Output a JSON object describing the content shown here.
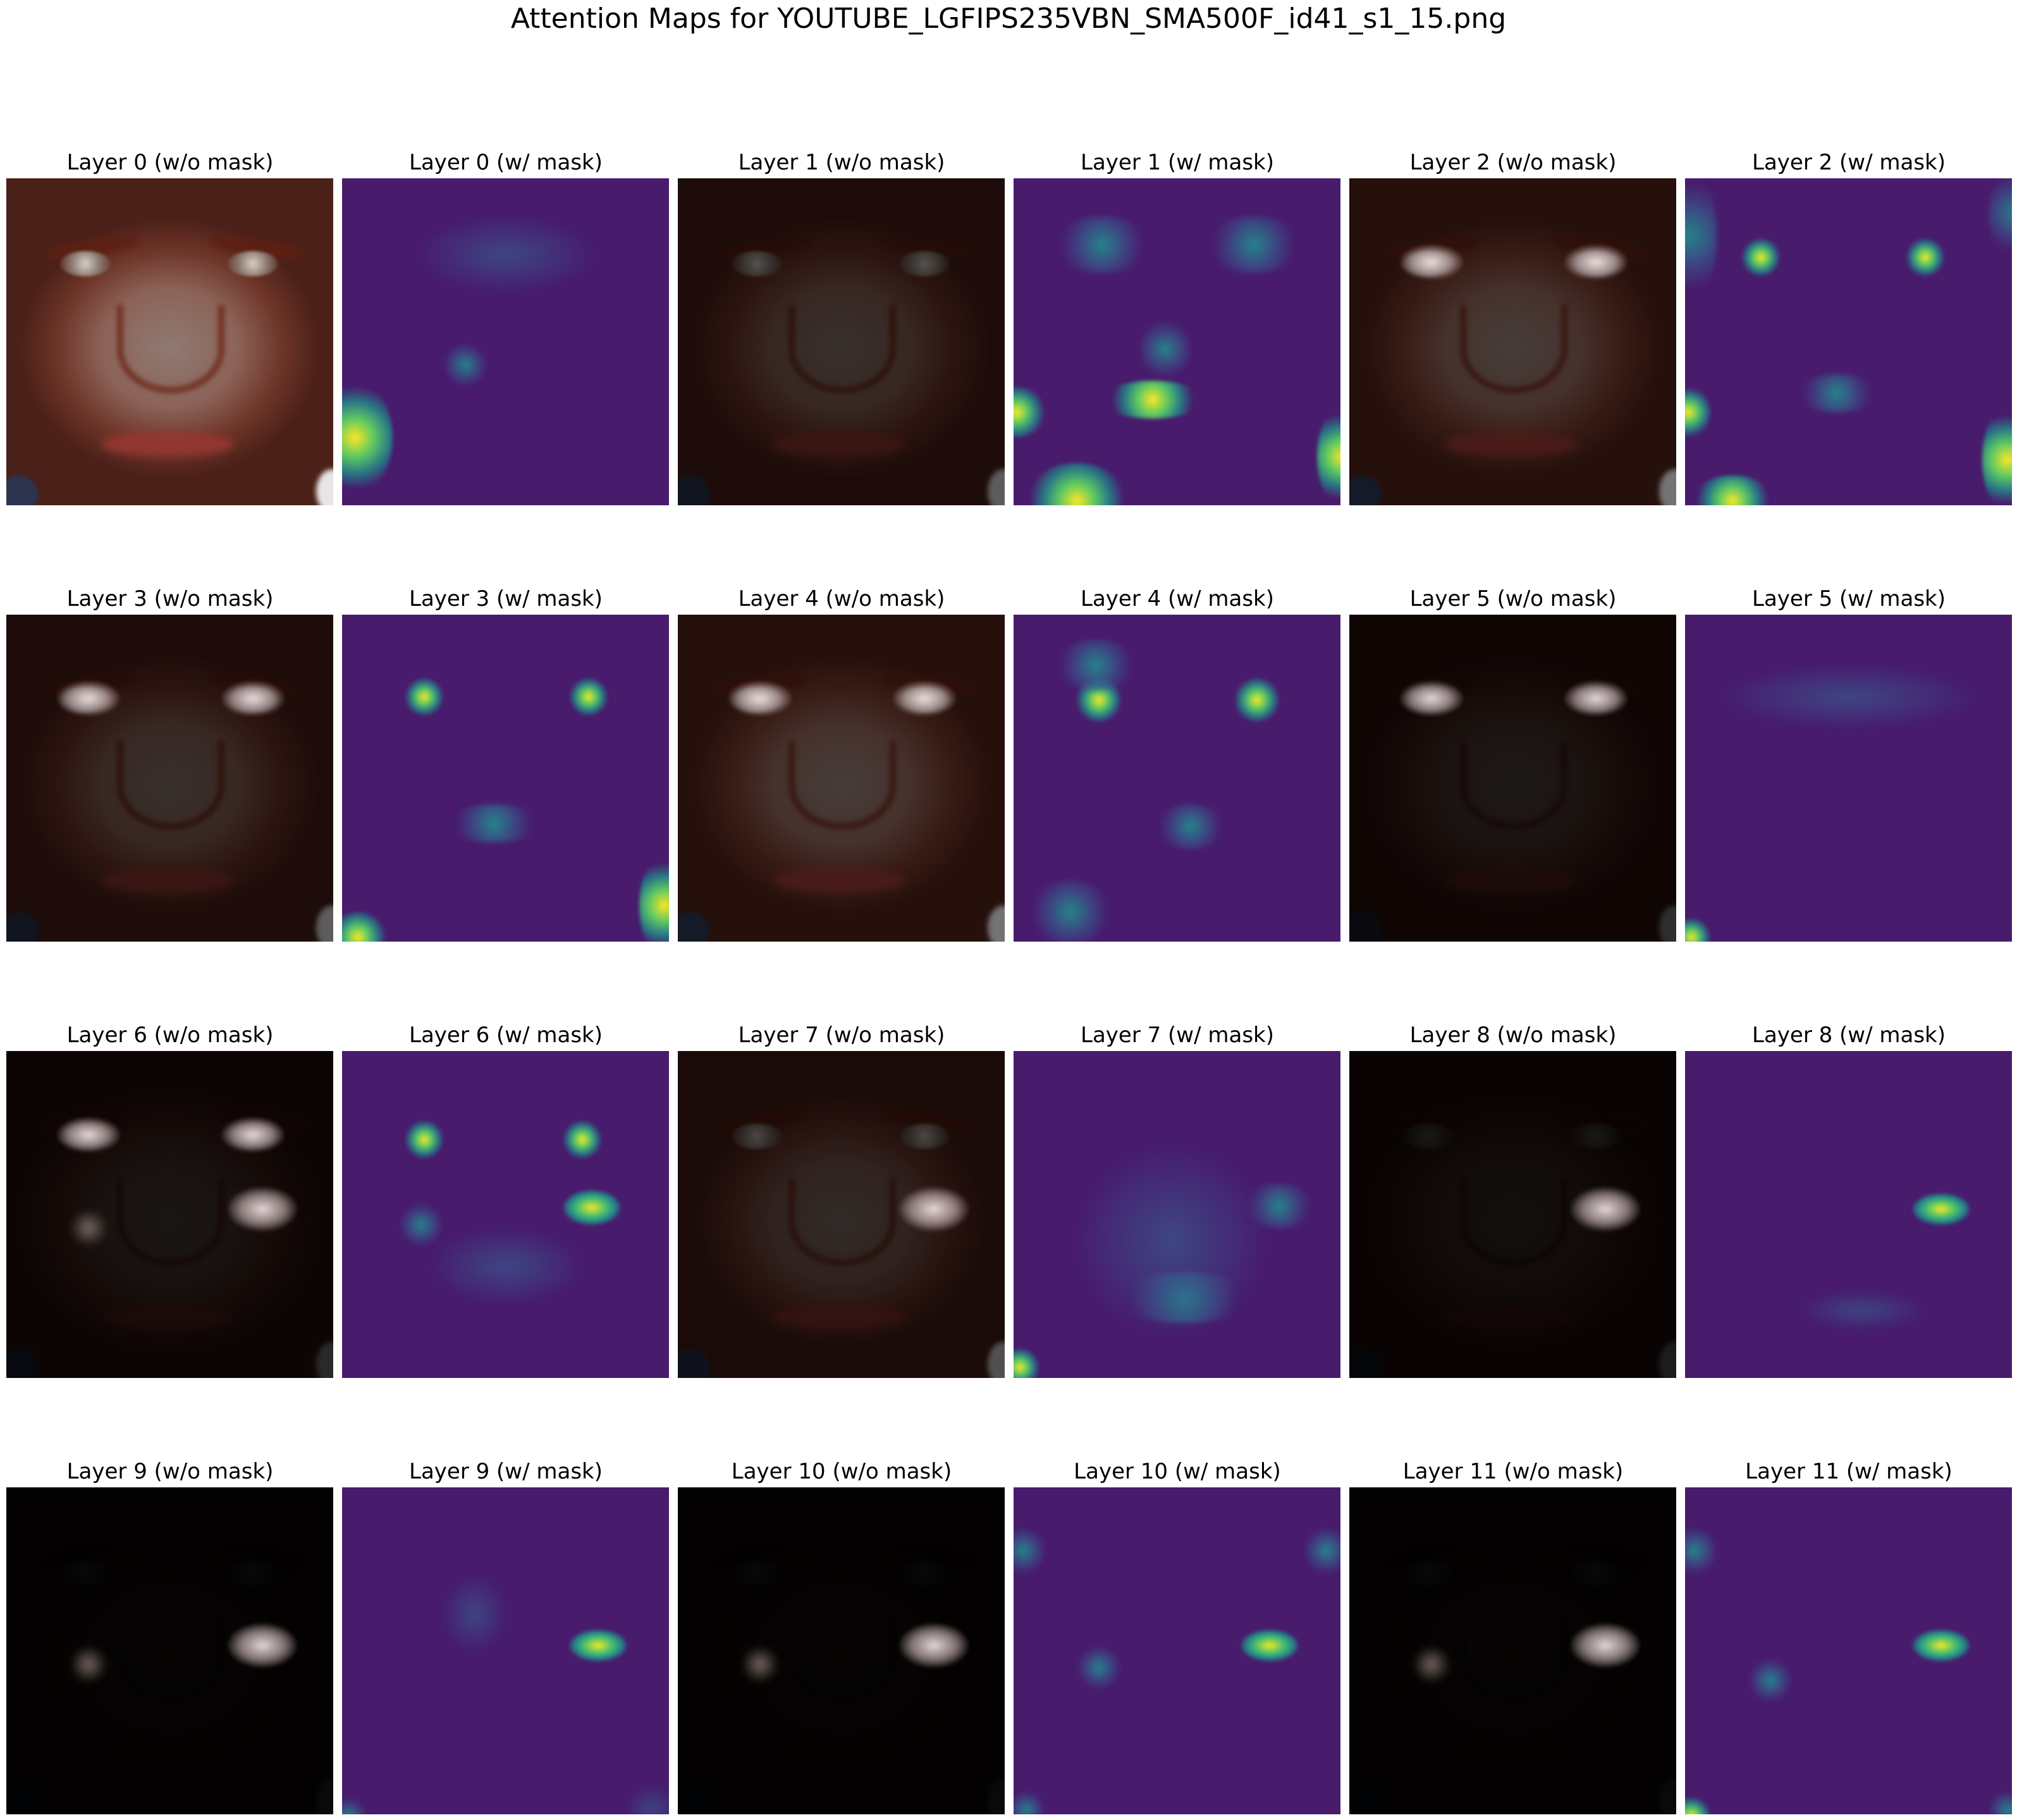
{
  "figure": {
    "title": "Attention Maps for YOUTUBE_LGFIPS235VBN_SMA500F_id41_s1_15.png"
  },
  "colors": {
    "viridis_low": "#481b6d",
    "viridis_mid": "#21918c",
    "viridis_high": "#fde725",
    "skin": "#8c6358"
  },
  "panels": [
    {
      "title": "Layer 0 (w/o mask)",
      "kind": "face",
      "darkness": 0.0
    },
    {
      "title": "Layer 0 (w/ mask)",
      "kind": "attention"
    },
    {
      "title": "Layer 1 (w/o mask)",
      "kind": "face",
      "darkness": 0.6
    },
    {
      "title": "Layer 1 (w/ mask)",
      "kind": "attention"
    },
    {
      "title": "Layer 2 (w/o mask)",
      "kind": "face",
      "darkness": 0.5
    },
    {
      "title": "Layer 2 (w/ mask)",
      "kind": "attention"
    },
    {
      "title": "Layer 3 (w/o mask)",
      "kind": "face",
      "darkness": 0.6
    },
    {
      "title": "Layer 3 (w/ mask)",
      "kind": "attention"
    },
    {
      "title": "Layer 4 (w/o mask)",
      "kind": "face",
      "darkness": 0.5
    },
    {
      "title": "Layer 4 (w/ mask)",
      "kind": "attention"
    },
    {
      "title": "Layer 5 (w/o mask)",
      "kind": "face",
      "darkness": 0.8
    },
    {
      "title": "Layer 5 (w/ mask)",
      "kind": "attention"
    },
    {
      "title": "Layer 6 (w/o mask)",
      "kind": "face",
      "darkness": 0.82
    },
    {
      "title": "Layer 6 (w/ mask)",
      "kind": "attention"
    },
    {
      "title": "Layer 7 (w/o mask)",
      "kind": "face",
      "darkness": 0.65
    },
    {
      "title": "Layer 7 (w/ mask)",
      "kind": "attention"
    },
    {
      "title": "Layer 8 (w/o mask)",
      "kind": "face",
      "darkness": 0.88
    },
    {
      "title": "Layer 8 (w/ mask)",
      "kind": "attention"
    },
    {
      "title": "Layer 9 (w/o mask)",
      "kind": "face",
      "darkness": 0.96
    },
    {
      "title": "Layer 9 (w/ mask)",
      "kind": "attention"
    },
    {
      "title": "Layer 10 (w/o mask)",
      "kind": "face",
      "darkness": 0.96
    },
    {
      "title": "Layer 10 (w/ mask)",
      "kind": "attention"
    },
    {
      "title": "Layer 11 (w/o mask)",
      "kind": "face",
      "darkness": 0.96
    },
    {
      "title": "Layer 11 (w/ mask)",
      "kind": "attention"
    }
  ]
}
